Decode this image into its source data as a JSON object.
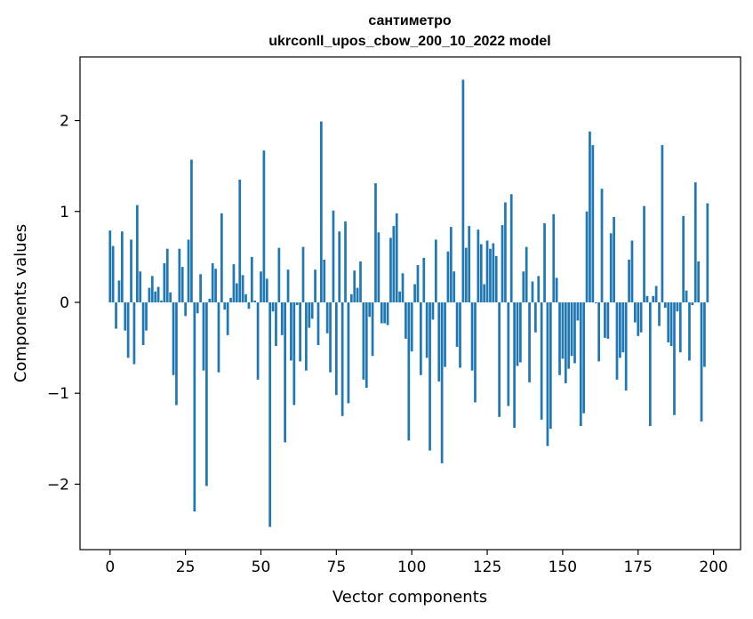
{
  "chart_data": {
    "type": "bar",
    "title_line1": "сантиметро",
    "title_line2": "ukrconll_upos_cbow_200_10_2022 model",
    "xlabel": "Vector components",
    "ylabel": "Components values",
    "xlim": [
      -9.95,
      208.95
    ],
    "ylim": [
      -2.72,
      2.7
    ],
    "x_ticks": [
      0,
      25,
      50,
      75,
      100,
      125,
      150,
      175,
      200
    ],
    "y_ticks": [
      -2,
      -1,
      0,
      1,
      2
    ],
    "y_tick_labels": [
      "−2",
      "−1",
      "0",
      "1",
      "2"
    ],
    "bar_color": "#1f77b4",
    "values": [
      0.79,
      0.62,
      -0.29,
      0.24,
      0.78,
      -0.31,
      -0.61,
      0.69,
      -0.68,
      1.07,
      0.34,
      -0.47,
      -0.31,
      0.16,
      0.29,
      0.12,
      0.17,
      0.02,
      0.43,
      0.59,
      0.11,
      -0.8,
      -1.13,
      0.59,
      0.39,
      -0.15,
      0.69,
      1.57,
      -2.3,
      -0.12,
      0.31,
      -0.75,
      -2.02,
      0.04,
      0.43,
      0.37,
      -0.77,
      0.98,
      -0.08,
      -0.36,
      0.05,
      0.42,
      0.21,
      1.35,
      0.3,
      0.09,
      -0.07,
      0.5,
      0.02,
      -0.85,
      0.34,
      1.67,
      0.26,
      -2.47,
      -0.1,
      -0.48,
      0.6,
      -0.36,
      -1.54,
      0.36,
      -0.64,
      -1.13,
      -0.03,
      -0.65,
      0.61,
      -0.75,
      -0.28,
      -0.18,
      0.36,
      -0.47,
      1.99,
      0.47,
      -0.34,
      -0.77,
      1.01,
      -1.02,
      0.78,
      -1.25,
      0.89,
      -1.11,
      0.09,
      0.35,
      0.16,
      0.45,
      -0.85,
      -0.94,
      -0.16,
      -0.59,
      1.31,
      0.77,
      -0.23,
      -0.23,
      -0.25,
      0.71,
      0.84,
      0.98,
      0.12,
      0.32,
      -0.4,
      -1.52,
      -0.54,
      0.2,
      0.41,
      -0.8,
      0.49,
      -0.61,
      -1.63,
      -0.19,
      0.69,
      -0.87,
      -1.77,
      -0.71,
      0.56,
      0.83,
      0.34,
      -0.49,
      -0.72,
      2.45,
      0.6,
      0.84,
      -0.75,
      -1.1,
      0.8,
      0.64,
      0.2,
      0.68,
      0.59,
      0.65,
      0.51,
      -1.26,
      0.85,
      1.1,
      -1.14,
      1.19,
      -1.38,
      -0.7,
      -0.66,
      0.34,
      0.61,
      -0.88,
      0.23,
      -0.33,
      0.29,
      -1.29,
      0.87,
      -1.58,
      -1.39,
      0.97,
      0.27,
      -0.8,
      -0.62,
      -0.89,
      -0.73,
      -0.59,
      -0.67,
      -0.2,
      -1.36,
      -1.22,
      1.0,
      1.88,
      1.73,
      -0.01,
      -0.65,
      1.25,
      -0.39,
      -0.4,
      0.76,
      0.94,
      -0.85,
      -0.61,
      -0.55,
      -0.97,
      0.47,
      0.68,
      -0.22,
      -0.37,
      -0.33,
      1.06,
      0.07,
      -1.36,
      0.07,
      0.18,
      -0.26,
      1.73,
      -0.06,
      -0.44,
      -0.48,
      -1.24,
      -0.1,
      -0.55,
      0.95,
      0.13,
      -0.64,
      -0.03,
      1.32,
      0.45,
      -1.31,
      -0.71,
      1.09
    ]
  }
}
